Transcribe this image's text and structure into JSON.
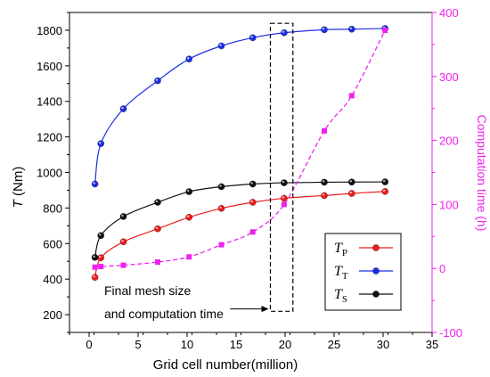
{
  "chart_data": {
    "type": "line",
    "xlabel": "Grid cell number(million)",
    "ylabel_left": {
      "italic": "T",
      "rest": " (Nm)"
    },
    "ylabel_right": "Computation time (h)",
    "xlim": [
      -2,
      35
    ],
    "xticks": [
      0,
      5,
      10,
      15,
      20,
      25,
      30,
      35
    ],
    "ylim_left": [
      100,
      1900
    ],
    "yticks_left": [
      200,
      400,
      600,
      800,
      1000,
      1200,
      1400,
      1600,
      1800
    ],
    "ylim_right": [
      -100,
      400
    ],
    "yticks_right": [
      -100,
      0,
      100,
      200,
      300,
      400
    ],
    "series": [
      {
        "name": "T_P",
        "label_main": "T",
        "label_sub": "P",
        "axis": "left",
        "color": "#ee1c1c",
        "x": [
          0.6,
          1.2,
          3.5,
          7,
          10.2,
          13.5,
          16.7,
          19.9,
          24,
          26.8,
          30.2
        ],
        "y": [
          410,
          520,
          610,
          683,
          748,
          798,
          832,
          855,
          870,
          882,
          893
        ]
      },
      {
        "name": "T_T",
        "label_main": "T",
        "label_sub": "T",
        "axis": "left",
        "color": "#1c2ee8",
        "x": [
          0.6,
          1.2,
          3.5,
          7,
          10.2,
          13.5,
          16.7,
          19.9,
          24,
          26.8,
          30.2
        ],
        "y": [
          935,
          1162,
          1358,
          1516,
          1638,
          1712,
          1758,
          1786,
          1803,
          1806,
          1810
        ]
      },
      {
        "name": "T_S",
        "label_main": "T",
        "label_sub": "S",
        "axis": "left",
        "color": "#111111",
        "x": [
          0.6,
          1.2,
          3.5,
          7,
          10.2,
          13.5,
          16.7,
          19.9,
          24,
          26.8,
          30.2
        ],
        "y": [
          522,
          645,
          752,
          832,
          892,
          920,
          935,
          942,
          945,
          946,
          947
        ]
      },
      {
        "name": "Computation time",
        "axis": "right",
        "color": "#ee22ee",
        "style": "dashed",
        "marker": "square",
        "x": [
          0.6,
          1.2,
          3.5,
          7,
          10.2,
          13.5,
          16.7,
          19.9,
          24,
          26.8,
          30.2
        ],
        "y": [
          2,
          3,
          5,
          10,
          18,
          37,
          57,
          100,
          215,
          270,
          372
        ]
      }
    ],
    "annotation": {
      "lines": [
        "Final mesh size",
        "and computation time"
      ],
      "box_x": [
        18.5,
        20.8
      ],
      "box_y_right": [
        -67,
        383
      ],
      "arrow_x": [
        17.3,
        18.5
      ],
      "arrow_y_left": 232
    },
    "legend_position": "bottom-right"
  }
}
